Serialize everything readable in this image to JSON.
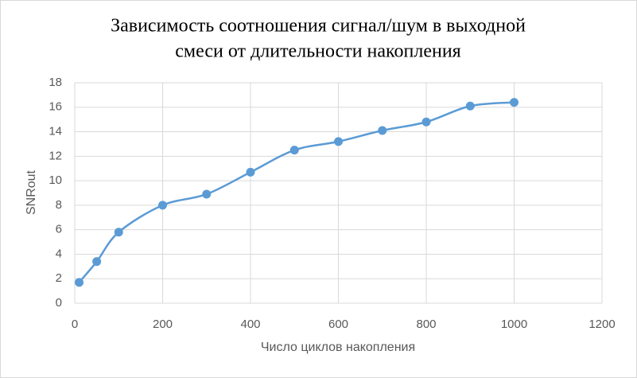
{
  "chart_data": {
    "type": "scatter",
    "title": [
      "Зависимость соотношения сигнал/шум в выходной",
      "смеси от длительности накопления"
    ],
    "x_label": "Число циклов накопления",
    "y_label": "SNRout",
    "series": [
      {
        "name": "SNRout",
        "color": "#5b9bd5",
        "x": [
          10,
          50,
          100,
          200,
          300,
          400,
          500,
          600,
          700,
          800,
          900,
          1000
        ],
        "values": [
          1.7,
          3.4,
          5.8,
          8.0,
          8.9,
          10.7,
          12.5,
          13.2,
          14.1,
          14.8,
          16.1,
          16.4
        ]
      }
    ],
    "xlim": [
      0,
      1200
    ],
    "xticks": [
      0,
      200,
      400,
      600,
      800,
      1000,
      1200
    ],
    "ylim": [
      0,
      18
    ],
    "yticks": [
      0,
      2,
      4,
      6,
      8,
      10,
      12,
      14,
      16,
      18
    ],
    "grid": true,
    "smooth": true
  }
}
